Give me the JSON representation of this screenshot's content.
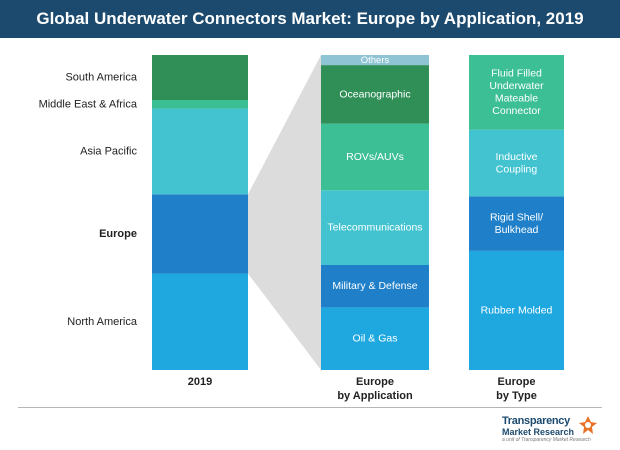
{
  "title": "Global Underwater Connectors Market: Europe by Application, 2019",
  "colors": {
    "title_bg": "#1c4a6e",
    "connector": "#dcdcdc"
  },
  "chart_data": [
    {
      "type": "bar",
      "stacked": true,
      "axis_label": "2019",
      "highlight": "Europe",
      "segments": [
        {
          "label": "North America",
          "value": 22.5,
          "color": "#1fa8e0"
        },
        {
          "label": "Europe",
          "value": 18.5,
          "color": "#1f7fc9"
        },
        {
          "label": "Asia Pacific",
          "value": 20.0,
          "color": "#42c3cf"
        },
        {
          "label": "Middle East & Africa",
          "value": 2.0,
          "color": "#3dbf95"
        },
        {
          "label": "South America",
          "value": 10.5,
          "color": "#2f8f57"
        }
      ]
    },
    {
      "type": "bar",
      "stacked": true,
      "axis_label": "Europe\nby Application",
      "segments": [
        {
          "label": "Oil & Gas",
          "value": 15.5,
          "color": "#1fa8e0"
        },
        {
          "label": "Military & Defense",
          "value": 10.5,
          "color": "#1f7fc9"
        },
        {
          "label": "Telecommunications",
          "value": 18.5,
          "color": "#42c3cf"
        },
        {
          "label": "ROVs/AUVs",
          "value": 16.5,
          "color": "#3dbf95"
        },
        {
          "label": "Oceanographic",
          "value": 14.5,
          "color": "#2f8f57"
        },
        {
          "label": "Others",
          "value": 2.5,
          "color": "#8fc4d4"
        }
      ]
    },
    {
      "type": "bar",
      "stacked": true,
      "axis_label": "Europe\nby Type",
      "segments": [
        {
          "label": "Rubber Molded",
          "value": 29.5,
          "color": "#1fa8e0"
        },
        {
          "label": "Rigid Shell/\nBulkhead",
          "value": 13.5,
          "color": "#1f7fc9"
        },
        {
          "label": "Inductive\nCoupling",
          "value": 16.5,
          "color": "#42c3cf"
        },
        {
          "label": "Fluid Filled\nUnderwater\nMateable\nConnector",
          "value": 18.5,
          "color": "#3dbf95"
        }
      ]
    }
  ],
  "logo": {
    "line1": "Transparency",
    "line2": "Market Research",
    "line3": "a unit of Transparency Market Research"
  }
}
